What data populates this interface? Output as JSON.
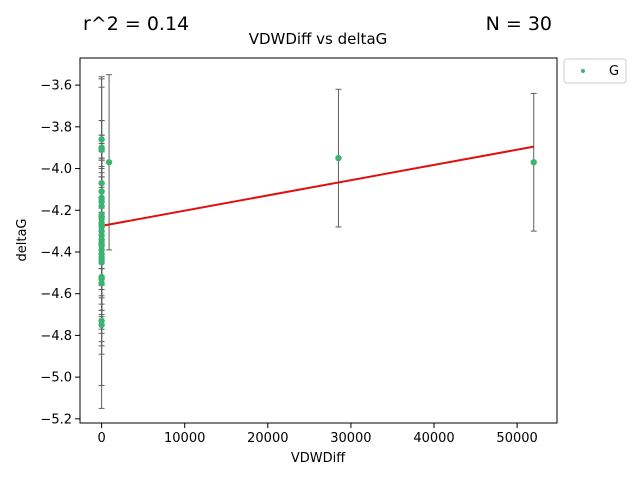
{
  "chart_data": {
    "type": "scatter",
    "title": "VDWDiff vs deltaG",
    "xlabel": "VDWDiff",
    "ylabel": "deltaG",
    "xlim": [
      -2600,
      54800
    ],
    "ylim": [
      -5.22,
      -3.47
    ],
    "xticks": [
      0,
      10000,
      20000,
      30000,
      40000,
      50000
    ],
    "yticks": [
      -3.6,
      -3.8,
      -4.0,
      -4.2,
      -4.4,
      -4.6,
      -4.8,
      -5.0,
      -5.2
    ],
    "xtick_labels": [
      "0",
      "10000",
      "20000",
      "30000",
      "40000",
      "50000"
    ],
    "ytick_labels": [
      "−3.6",
      "−3.8",
      "−4.0",
      "−4.2",
      "−4.4",
      "−4.6",
      "−4.8",
      "−5.0",
      "−5.2"
    ],
    "annotations": {
      "r2": "r^2 = 0.14",
      "n": "N = 30"
    },
    "grid": false,
    "legend": {
      "placement": "outside-top-right",
      "entries": [
        "G"
      ]
    },
    "colors": {
      "points": "#3cb371",
      "fit": "#e01010",
      "errorbars": "#606060"
    },
    "series": [
      {
        "name": "G",
        "x": [
          0,
          0,
          0,
          0,
          0,
          0,
          0,
          0,
          0,
          0,
          0,
          0,
          0,
          0,
          0,
          0,
          0,
          0,
          0,
          0,
          0,
          0,
          0,
          0,
          0,
          0,
          0,
          900,
          28500,
          52000
        ],
        "y": [
          -3.86,
          -3.9,
          -3.91,
          -4.07,
          -4.11,
          -4.14,
          -4.16,
          -4.18,
          -4.24,
          -4.26,
          -4.28,
          -4.3,
          -4.32,
          -4.34,
          -4.36,
          -4.39,
          -4.41,
          -4.43,
          -4.45,
          -4.52,
          -4.53,
          -4.55,
          -4.73,
          -4.75,
          -4.27,
          -4.22,
          -4.37,
          -3.97,
          -3.95,
          -3.97
        ],
        "yerr": [
          0.3,
          0.33,
          0.3,
          0.3,
          0.34,
          0.3,
          0.32,
          0.3,
          0.34,
          0.3,
          0.33,
          0.35,
          0.3,
          0.34,
          0.32,
          0.4,
          0.3,
          0.34,
          0.3,
          0.33,
          0.3,
          0.34,
          0.31,
          0.4,
          0.31,
          0.3,
          0.33,
          0.42,
          0.33,
          0.33
        ]
      }
    ],
    "fit_line": {
      "x": [
        0,
        52000
      ],
      "y": [
        -4.275,
        -3.895
      ]
    }
  }
}
